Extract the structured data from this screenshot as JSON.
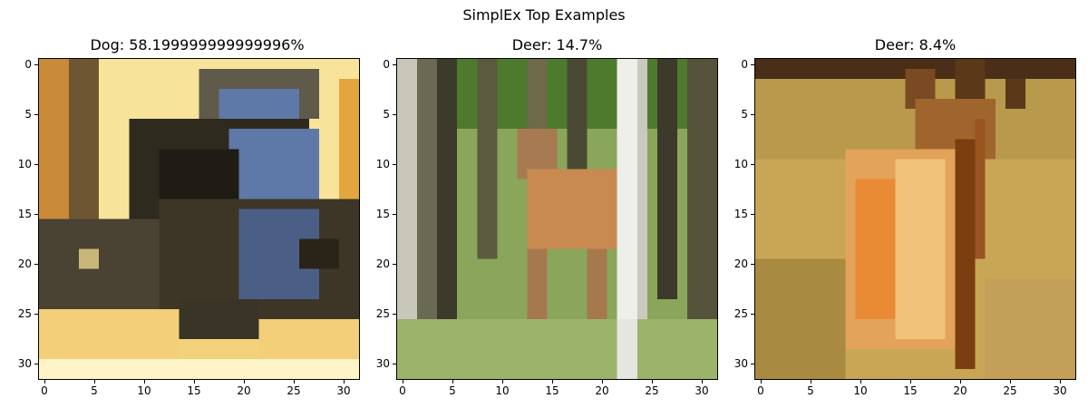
{
  "figure": {
    "title": "SimplEx Top Examples"
  },
  "chart_data": [
    {
      "type": "image",
      "title": "Dog: 58.199999999999996%",
      "label": "Dog",
      "weight_percent": 58.199999999999996,
      "xlim": [
        -0.5,
        31.5
      ],
      "ylim": [
        31.5,
        -0.5
      ],
      "xticks": [
        0,
        5,
        10,
        15,
        20,
        25,
        30
      ],
      "yticks": [
        0,
        5,
        10,
        15,
        20,
        25,
        30
      ],
      "scene": "dog",
      "palette": {
        "bg": "#f2d27a",
        "wall": "#f7e49a",
        "door": "#c98a3a",
        "fur_dark": "#3b3526",
        "fur_blue": "#5e78a8",
        "floor": "#f3cf7a",
        "light": "#fff3c8"
      }
    },
    {
      "type": "image",
      "title": "Deer: 14.7%",
      "label": "Deer",
      "weight_percent": 14.7,
      "xlim": [
        -0.5,
        31.5
      ],
      "ylim": [
        31.5,
        -0.5
      ],
      "xticks": [
        0,
        5,
        10,
        15,
        20,
        25,
        30
      ],
      "yticks": [
        0,
        5,
        10,
        15,
        20,
        25,
        30
      ],
      "scene": "deer-forest",
      "palette": {
        "grass": "#8aa65a",
        "foliage": "#4e7a2e",
        "trunk_dark": "#3c3a2a",
        "trunk_light": "#eeeeea",
        "deer": "#c98a52",
        "ground": "#9cb46a"
      }
    },
    {
      "type": "image",
      "title": "Deer: 8.4%",
      "label": "Deer",
      "weight_percent": 8.4,
      "xlim": [
        -0.5,
        31.5
      ],
      "ylim": [
        31.5,
        -0.5
      ],
      "xticks": [
        0,
        5,
        10,
        15,
        20,
        25,
        30
      ],
      "yticks": [
        0,
        5,
        10,
        15,
        20,
        25,
        30
      ],
      "scene": "deer-field",
      "palette": {
        "field": "#c9a655",
        "field_dark": "#a88a40",
        "deer": "#e3a35a",
        "deer_light": "#f0c27a",
        "antler": "#5a3818",
        "top": "#4a2e18"
      }
    }
  ]
}
